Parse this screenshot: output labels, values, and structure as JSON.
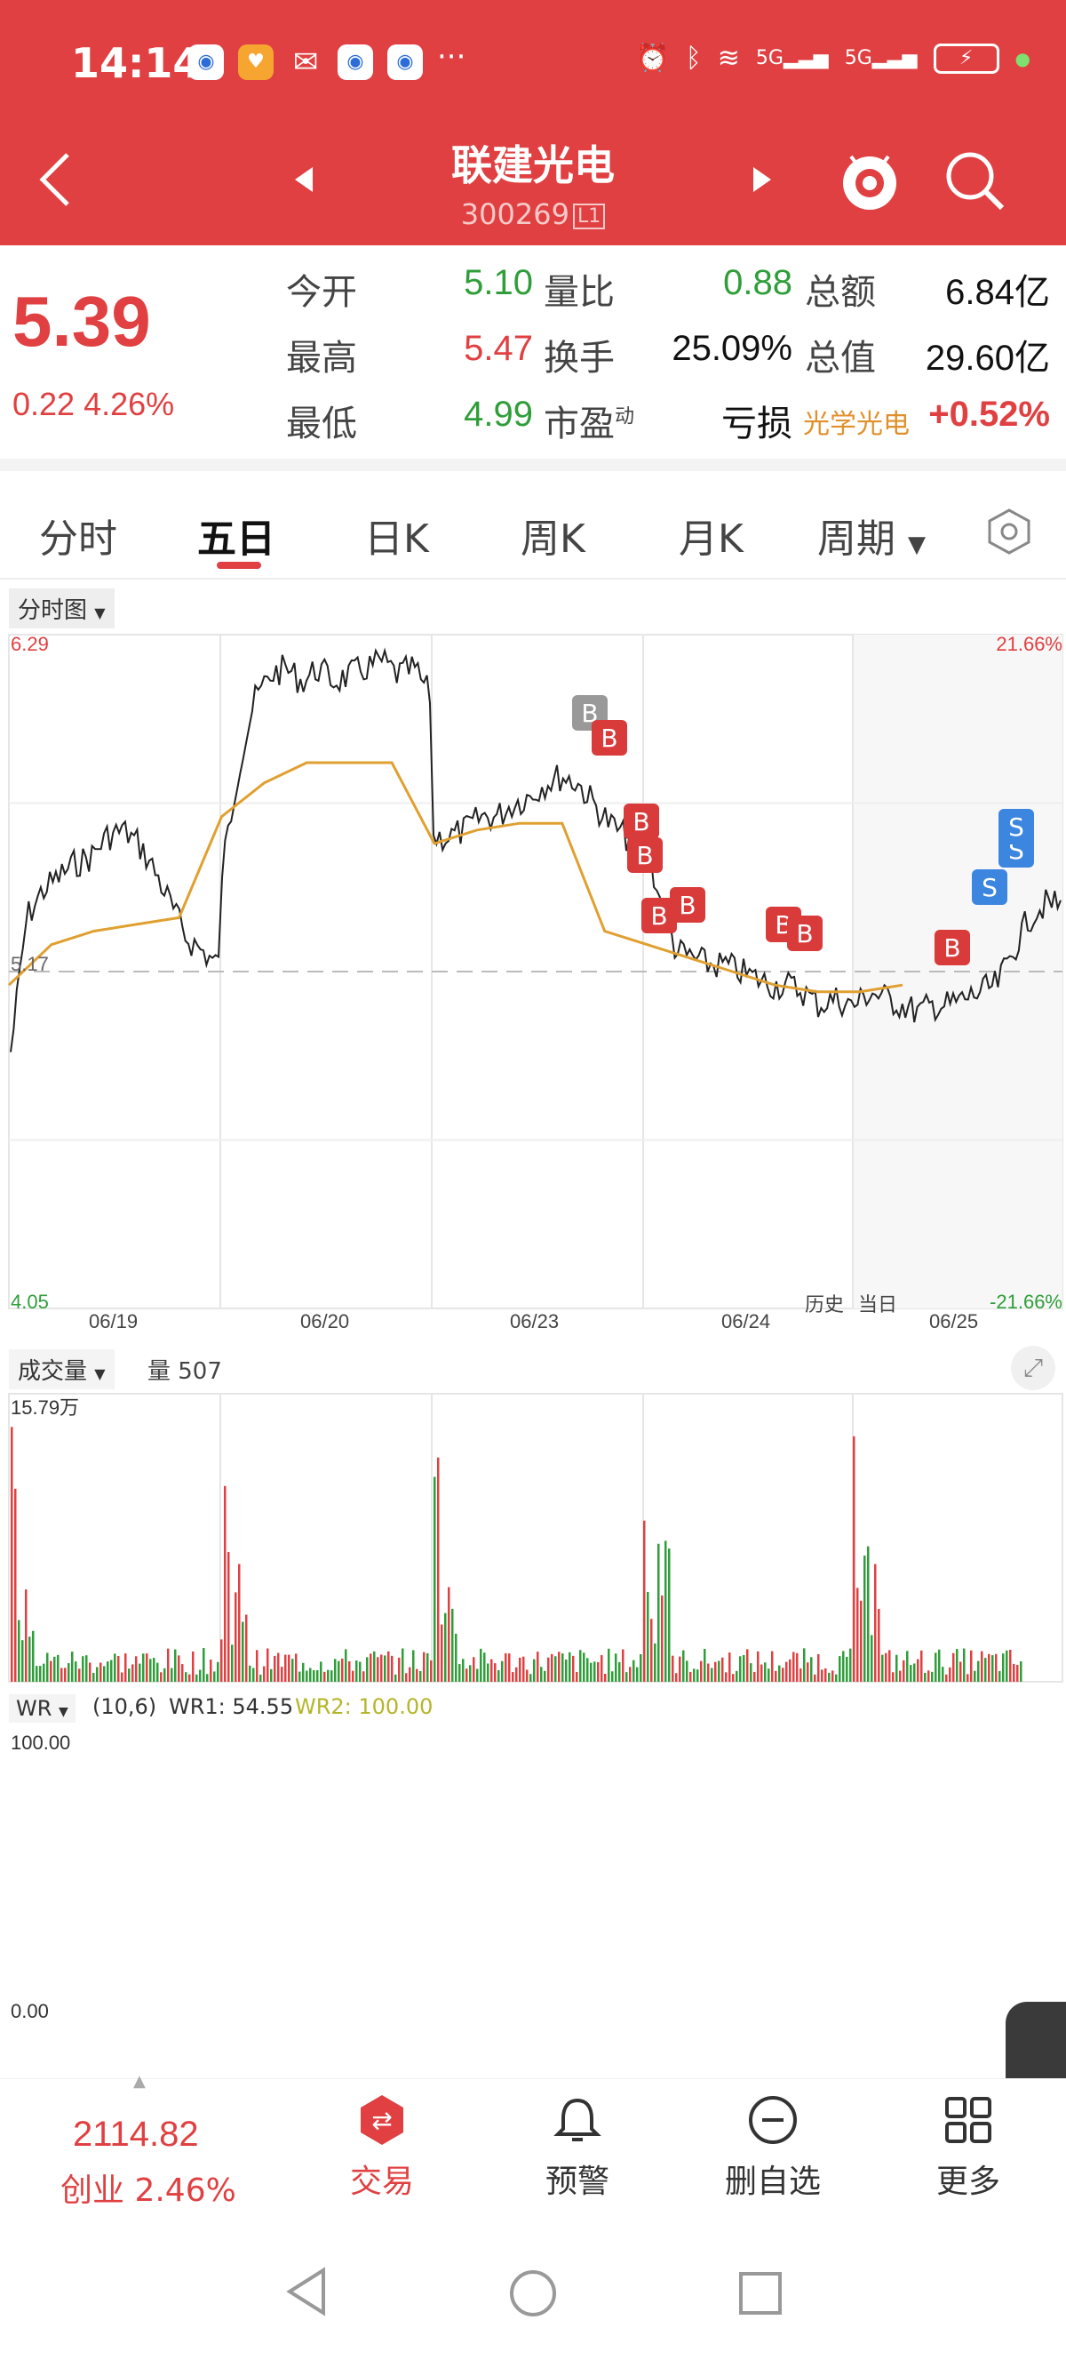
{
  "status": {
    "time": "14:14",
    "dots": "···",
    "network1": "5G",
    "network2": "5G"
  },
  "header": {
    "name": "联建光电",
    "code": "300269",
    "level_badge": "L1"
  },
  "quote": {
    "price": "5.39",
    "change": "0.22 4.26%",
    "rows": [
      {
        "l1": "今开",
        "v1": "5.10",
        "l2": "量比",
        "v2": "0.88",
        "l3": "总额",
        "v3": "6.84亿"
      },
      {
        "l1": "最高",
        "v1": "5.47",
        "l2": "换手",
        "v2": "25.09%",
        "l3": "总值",
        "v3": "29.60亿"
      },
      {
        "l1": "最低",
        "v1": "4.99",
        "l2": "市盈",
        "l2sup": "动",
        "v2": "亏损",
        "l3": "光学光电",
        "v3": "+0.52%"
      }
    ]
  },
  "tabs": [
    "分时",
    "五日",
    "日K",
    "周K",
    "月K",
    "周期"
  ],
  "chart": {
    "type_label": "分时图",
    "y_top_left": "6.29",
    "y_top_right": "21.66%",
    "y_mid_left": "5.17",
    "y_bottom_left": "4.05",
    "y_bottom_right": "-21.66%",
    "dates": [
      "06/19",
      "06/20",
      "06/23",
      "06/24",
      "06/25"
    ],
    "history_label": "历史",
    "today_label": "当日",
    "buy_label": "B",
    "sell_label": "S"
  },
  "volume": {
    "label": "成交量",
    "value_label": "量 507",
    "max_label": "15.79万"
  },
  "wr": {
    "label": "WR",
    "params": "(10,6)",
    "wr1": "WR1: 54.55",
    "wr2": "WR2: 100.00",
    "top": "100.00",
    "bottom": "0.00"
  },
  "bottom": {
    "index_value": "2114.82",
    "index_change": "创业 2.46%",
    "trade": "交易",
    "alert": "预警",
    "remove": "删自选",
    "more": "更多"
  },
  "colors": {
    "brand": "#e04041",
    "up": "#e04041",
    "down": "#2f9e3a",
    "avg_line": "#e0a030",
    "wr_line": "#b5b52a",
    "buy_marker": "#d93a3a",
    "sell_marker": "#3c86e0"
  }
}
